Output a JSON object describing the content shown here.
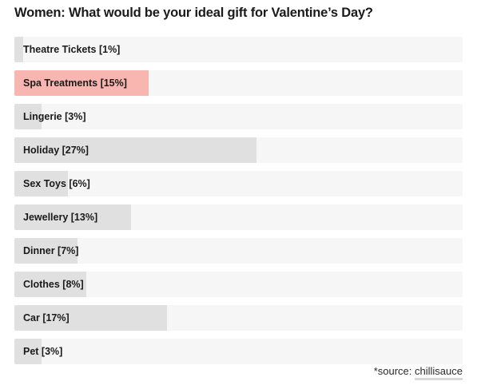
{
  "chart_data": {
    "type": "bar",
    "orientation": "horizontal",
    "title": "Women: What would be your ideal gift for Valentine’s Day?",
    "xlim": [
      0,
      50
    ],
    "categories": [
      "Theatre Tickets",
      "Spa Treatments",
      "Lingerie",
      "Holiday",
      "Sex Toys",
      "Jewellery",
      "Dinner",
      "Clothes",
      "Car",
      "Pet"
    ],
    "values": [
      1,
      15,
      3,
      27,
      6,
      13,
      7,
      8,
      17,
      3
    ],
    "labels": [
      "Theatre Tickets [1%]",
      "Spa Treatments [15%]",
      "Lingerie [3%]",
      "Holiday [27%]",
      "Sex Toys [6%]",
      "Jewellery [13%]",
      "Dinner [7%]",
      "Clothes [8%]",
      "Car [17%]",
      "Pet [3%]"
    ],
    "highlight_index": 1,
    "colors": {
      "bar": "#e0e0e0",
      "track": "#f6f6f6",
      "highlight": "#f9b5b0"
    }
  },
  "source": {
    "prefix": "*source: ",
    "link_text": "chillisauce"
  }
}
